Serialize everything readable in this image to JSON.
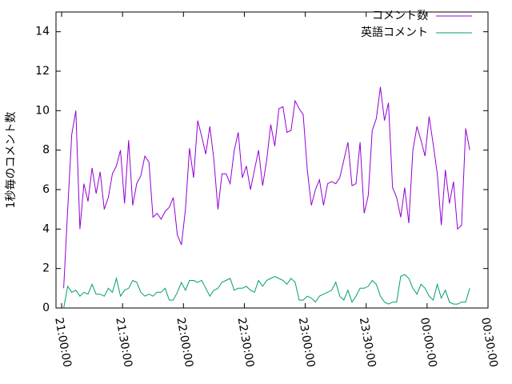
{
  "chart_data": {
    "type": "line",
    "ylabel": "1秒毎のコメント数",
    "x": [
      "21:01:00",
      "21:03:00",
      "21:05:00",
      "21:07:00",
      "21:09:00",
      "21:11:00",
      "21:13:00",
      "21:15:00",
      "21:17:00",
      "21:19:00",
      "21:21:00",
      "21:23:00",
      "21:25:00",
      "21:27:00",
      "21:29:00",
      "21:31:00",
      "21:33:00",
      "21:35:00",
      "21:37:00",
      "21:39:00",
      "21:41:00",
      "21:43:00",
      "21:45:00",
      "21:47:00",
      "21:49:00",
      "21:51:00",
      "21:53:00",
      "21:55:00",
      "21:57:00",
      "21:59:00",
      "22:01:00",
      "22:03:00",
      "22:05:00",
      "22:07:00",
      "22:09:00",
      "22:11:00",
      "22:13:00",
      "22:15:00",
      "22:17:00",
      "22:19:00",
      "22:21:00",
      "22:23:00",
      "22:25:00",
      "22:27:00",
      "22:29:00",
      "22:31:00",
      "22:33:00",
      "22:35:00",
      "22:37:00",
      "22:39:00",
      "22:41:00",
      "22:43:00",
      "22:45:00",
      "22:47:00",
      "22:49:00",
      "22:51:00",
      "22:53:00",
      "22:55:00",
      "22:57:00",
      "22:59:00",
      "23:01:00",
      "23:03:00",
      "23:05:00",
      "23:07:00",
      "23:09:00",
      "23:11:00",
      "23:13:00",
      "23:15:00",
      "23:17:00",
      "23:19:00",
      "23:21:00",
      "23:23:00",
      "23:25:00",
      "23:27:00",
      "23:29:00",
      "23:31:00",
      "23:33:00",
      "23:35:00",
      "23:37:00",
      "23:39:00",
      "23:41:00",
      "23:43:00",
      "23:45:00",
      "23:47:00",
      "23:49:00",
      "23:51:00",
      "23:53:00",
      "23:55:00",
      "23:57:00",
      "23:59:00",
      "00:01:00",
      "00:03:00",
      "00:05:00",
      "00:07:00",
      "00:09:00",
      "00:11:00",
      "00:13:00",
      "00:15:00",
      "00:17:00",
      "00:19:00",
      "00:21:00"
    ],
    "series": [
      {
        "name": "コメント数",
        "color": "#9400d3",
        "values": [
          1.0,
          5,
          8.8,
          10,
          4,
          6.3,
          5.4,
          7.1,
          5.8,
          6.9,
          5,
          5.6,
          6.8,
          7.2,
          8,
          5.3,
          8.5,
          5.2,
          6.3,
          6.7,
          7.7,
          7.4,
          4.6,
          4.8,
          4.5,
          4.9,
          5.1,
          5.6,
          3.7,
          3.2,
          5,
          8.1,
          6.6,
          9.5,
          8.7,
          7.8,
          9.2,
          7.5,
          5,
          6.8,
          6.8,
          6.3,
          8,
          8.9,
          6.6,
          7.2,
          6,
          7,
          8,
          6.2,
          7.5,
          9.3,
          8.2,
          10.1,
          10.2,
          8.9,
          9,
          10.5,
          10.1,
          9.8,
          7,
          5.2,
          6,
          6.5,
          5.2,
          6.3,
          6.4,
          6.3,
          6.6,
          7.5,
          8.4,
          6.2,
          6.3,
          8.4,
          4.8,
          5.7,
          9.0,
          9.6,
          11.2,
          9.5,
          10.4,
          6.1,
          5.6,
          4.6,
          6.1,
          4.3,
          8,
          9.2,
          8.5,
          7.7,
          9.7,
          8.3,
          6.8,
          4.2,
          7,
          5.3,
          6.4,
          4,
          4.2,
          9.1,
          8.0
        ]
      },
      {
        "name": "英語コメント",
        "color": "#009e73",
        "values": [
          0,
          1.1,
          0.8,
          0.9,
          0.6,
          0.8,
          0.7,
          1.2,
          0.7,
          0.7,
          0.6,
          1.0,
          0.8,
          1.5,
          0.6,
          0.9,
          1.0,
          1.4,
          1.3,
          0.8,
          0.6,
          0.7,
          0.6,
          0.8,
          0.8,
          1.0,
          0.4,
          0.4,
          0.8,
          1.3,
          0.9,
          1.4,
          1.4,
          1.3,
          1.4,
          1.0,
          0.6,
          0.9,
          1.0,
          1.3,
          1.4,
          1.5,
          0.9,
          1.0,
          1.0,
          1.1,
          0.9,
          0.8,
          1.4,
          1.1,
          1.4,
          1.5,
          1.6,
          1.5,
          1.4,
          1.2,
          1.5,
          1.3,
          0.4,
          0.4,
          0.6,
          0.5,
          0.3,
          0.6,
          0.7,
          0.8,
          0.9,
          1.3,
          0.6,
          0.4,
          0.9,
          0.3,
          0.6,
          1.0,
          1.0,
          1.1,
          1.4,
          1.2,
          0.6,
          0.3,
          0.2,
          0.3,
          0.3,
          1.6,
          1.7,
          1.5,
          1.0,
          0.7,
          1.2,
          1.0,
          0.6,
          0.4,
          1.2,
          0.5,
          0.9,
          0.3,
          0.2,
          0.2,
          0.3,
          0.3,
          1.0
        ]
      }
    ],
    "xlim": [
      "20:57:14",
      "00:30:00"
    ],
    "xticks": [
      "21:00:00",
      "21:30:00",
      "22:00:00",
      "22:30:00",
      "23:00:00",
      "23:30:00",
      "00:00:00",
      "00:30:00"
    ],
    "ylim": [
      0,
      15
    ],
    "yticks": [
      0,
      2,
      4,
      6,
      8,
      10,
      12,
      14
    ],
    "grid": false,
    "legend": "top-right"
  }
}
